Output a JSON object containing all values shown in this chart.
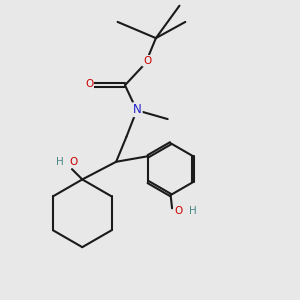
{
  "background_color": "#e8e8e8",
  "bond_color": "#1a1a1a",
  "bond_width": 1.5,
  "atom_colors": {
    "O": "#cc0000",
    "N": "#2222cc",
    "H_O": "#4a8888",
    "C": "#1a1a1a"
  },
  "figsize": [
    3.0,
    3.0
  ],
  "dpi": 100
}
